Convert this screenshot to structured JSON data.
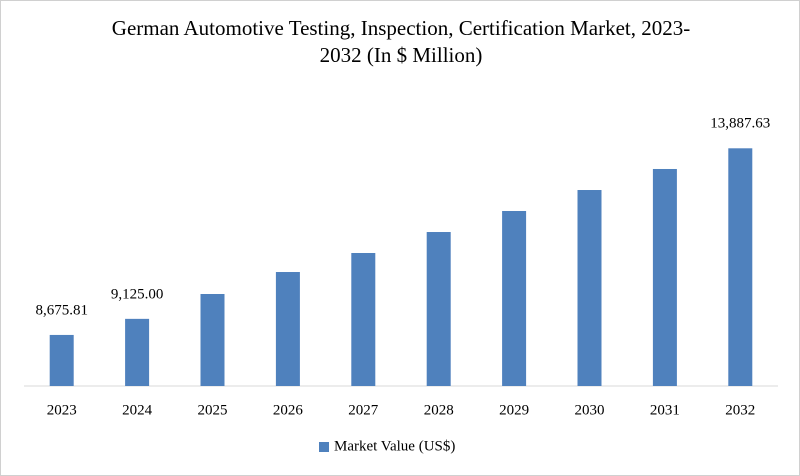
{
  "chart_data": {
    "type": "bar",
    "title": "German Automotive Testing, Inspection, Certification Market, 2023-2032 (In $ Million)",
    "categories": [
      "2023",
      "2024",
      "2025",
      "2026",
      "2027",
      "2028",
      "2029",
      "2030",
      "2031",
      "2032"
    ],
    "series": [
      {
        "name": "Market Value (US$)",
        "color": "#4f81bd",
        "values": [
          8675.81,
          9125.0,
          9819,
          10433,
          10964,
          11550,
          12137,
          12723,
          13310,
          13887.63
        ],
        "value_labels": [
          "8,675.81",
          "9,125.00",
          null,
          null,
          null,
          null,
          null,
          null,
          null,
          "13,887.63"
        ]
      }
    ],
    "ylim": [
      7250,
      14650
    ],
    "legend": "bottom"
  }
}
